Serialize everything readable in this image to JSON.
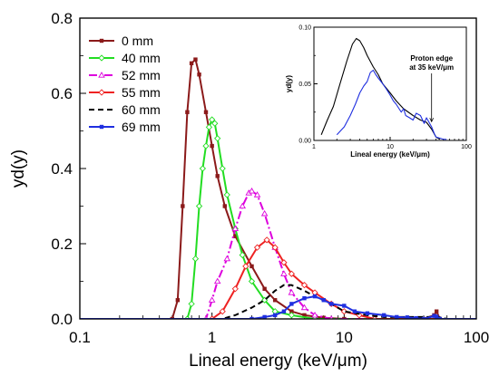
{
  "chart_data": [
    {
      "type": "line",
      "xlabel": "Lineal energy (keV/μm)",
      "ylabel": "yd(y)",
      "xscale": "log",
      "xlim": [
        0.1,
        100
      ],
      "ylim": [
        0,
        0.8
      ],
      "xticks": [
        {
          "value": 0.1,
          "label": "0.1"
        },
        {
          "value": 1,
          "label": "1"
        },
        {
          "value": 10,
          "label": "10"
        },
        {
          "value": 100,
          "label": "100"
        }
      ],
      "yticks": [
        {
          "value": 0,
          "label": "0.0"
        },
        {
          "value": 0.2,
          "label": "0.2"
        },
        {
          "value": 0.4,
          "label": "0.4"
        },
        {
          "value": 0.6,
          "label": "0.6"
        },
        {
          "value": 0.8,
          "label": "0.8"
        }
      ],
      "legend_position": "top-left",
      "series": [
        {
          "name": "0 mm",
          "color": "#8b1a1a",
          "dash": "solid",
          "marker": "square-filled",
          "points": [
            [
              0.1,
              0
            ],
            [
              0.5,
              0
            ],
            [
              0.55,
              0.05
            ],
            [
              0.6,
              0.3
            ],
            [
              0.65,
              0.55
            ],
            [
              0.7,
              0.68
            ],
            [
              0.75,
              0.69
            ],
            [
              0.8,
              0.65
            ],
            [
              0.9,
              0.55
            ],
            [
              1.0,
              0.46
            ],
            [
              1.1,
              0.38
            ],
            [
              1.25,
              0.3
            ],
            [
              1.5,
              0.22
            ],
            [
              2.0,
              0.14
            ],
            [
              2.5,
              0.08
            ],
            [
              3.0,
              0.05
            ],
            [
              4.0,
              0.02
            ],
            [
              5.0,
              0.01
            ],
            [
              7.0,
              0.003
            ],
            [
              10,
              0
            ],
            [
              40,
              0
            ],
            [
              48,
              0.01
            ],
            [
              50,
              0.02
            ],
            [
              53,
              0
            ],
            [
              100,
              0
            ]
          ]
        },
        {
          "name": "40 mm",
          "color": "#22dd22",
          "dash": "solid",
          "marker": "diamond-open",
          "points": [
            [
              0.1,
              0
            ],
            [
              0.65,
              0
            ],
            [
              0.7,
              0.04
            ],
            [
              0.75,
              0.16
            ],
            [
              0.8,
              0.3
            ],
            [
              0.85,
              0.4
            ],
            [
              0.9,
              0.46
            ],
            [
              0.95,
              0.51
            ],
            [
              1.0,
              0.53
            ],
            [
              1.05,
              0.52
            ],
            [
              1.1,
              0.48
            ],
            [
              1.2,
              0.4
            ],
            [
              1.3,
              0.33
            ],
            [
              1.5,
              0.24
            ],
            [
              1.7,
              0.17
            ],
            [
              2.0,
              0.1
            ],
            [
              2.5,
              0.05
            ],
            [
              3.0,
              0.02
            ],
            [
              4.0,
              0.01
            ],
            [
              6.0,
              0
            ],
            [
              100,
              0
            ]
          ]
        },
        {
          "name": "52 mm",
          "color": "#dd00dd",
          "dash": "dashdot",
          "marker": "triangle-open",
          "points": [
            [
              0.1,
              0
            ],
            [
              0.9,
              0
            ],
            [
              1.0,
              0.05
            ],
            [
              1.1,
              0.1
            ],
            [
              1.3,
              0.16
            ],
            [
              1.5,
              0.24
            ],
            [
              1.7,
              0.3
            ],
            [
              1.9,
              0.335
            ],
            [
              2.0,
              0.34
            ],
            [
              2.2,
              0.33
            ],
            [
              2.5,
              0.28
            ],
            [
              3.0,
              0.19
            ],
            [
              3.5,
              0.12
            ],
            [
              4.0,
              0.07
            ],
            [
              5.0,
              0.03
            ],
            [
              6.0,
              0.01
            ],
            [
              8.0,
              0
            ],
            [
              100,
              0
            ]
          ]
        },
        {
          "name": "55 mm",
          "color": "#ee2222",
          "dash": "solid",
          "marker": "diamond-open",
          "points": [
            [
              0.1,
              0
            ],
            [
              1.0,
              0
            ],
            [
              1.2,
              0.02
            ],
            [
              1.5,
              0.08
            ],
            [
              1.8,
              0.14
            ],
            [
              2.2,
              0.19
            ],
            [
              2.6,
              0.21
            ],
            [
              3.0,
              0.19
            ],
            [
              3.5,
              0.15
            ],
            [
              4.0,
              0.12
            ],
            [
              5.0,
              0.09
            ],
            [
              6.0,
              0.07
            ],
            [
              8.0,
              0.04
            ],
            [
              10,
              0.02
            ],
            [
              13,
              0.01
            ],
            [
              17,
              0
            ],
            [
              100,
              0
            ]
          ]
        },
        {
          "name": "60 mm",
          "color": "#000000",
          "dash": "dashed",
          "marker": "none",
          "points": [
            [
              0.1,
              0
            ],
            [
              1.2,
              0
            ],
            [
              1.5,
              0.01
            ],
            [
              2.0,
              0.03
            ],
            [
              2.5,
              0.05
            ],
            [
              3.0,
              0.075
            ],
            [
              3.5,
              0.09
            ],
            [
              4.0,
              0.09
            ],
            [
              5.0,
              0.075
            ],
            [
              6.0,
              0.06
            ],
            [
              8.0,
              0.04
            ],
            [
              10,
              0.02
            ],
            [
              15,
              0.01
            ],
            [
              20,
              0.005
            ],
            [
              30,
              0.005
            ],
            [
              45,
              0.005
            ],
            [
              48,
              0.008
            ],
            [
              52,
              0.005
            ],
            [
              60,
              0
            ],
            [
              100,
              0
            ]
          ]
        },
        {
          "name": "69 mm",
          "color": "#1f2fe0",
          "dash": "solid",
          "marker": "square-filled",
          "points": [
            [
              0.1,
              0
            ],
            [
              2.0,
              0
            ],
            [
              2.5,
              0.005
            ],
            [
              3.0,
              0.01
            ],
            [
              3.5,
              0.02
            ],
            [
              4.0,
              0.04
            ],
            [
              5.0,
              0.055
            ],
            [
              6.0,
              0.06
            ],
            [
              7.0,
              0.05
            ],
            [
              8.0,
              0.04
            ],
            [
              10,
              0.035
            ],
            [
              12,
              0.02
            ],
            [
              15,
              0.015
            ],
            [
              20,
              0.01
            ],
            [
              25,
              0.005
            ],
            [
              30,
              0.004
            ],
            [
              35,
              0.002
            ],
            [
              40,
              0
            ],
            [
              48,
              0.008
            ],
            [
              50,
              0.006
            ],
            [
              53,
              0
            ],
            [
              100,
              0
            ]
          ]
        }
      ]
    },
    {
      "type": "line",
      "xlabel": "Lineal energy (keV/μm)",
      "ylabel": "yd(y)",
      "xscale": "log",
      "xlim": [
        1,
        100
      ],
      "ylim": [
        0,
        0.1
      ],
      "xticks": [
        {
          "value": 1,
          "label": "1"
        },
        {
          "value": 10,
          "label": "10"
        },
        {
          "value": 100,
          "label": "100"
        }
      ],
      "yticks": [
        {
          "value": 0,
          "label": "0.00"
        },
        {
          "value": 0.05,
          "label": "0.05"
        },
        {
          "value": 0.1,
          "label": "0.10"
        }
      ],
      "annotation": {
        "line1": "Proton edge",
        "line2": "at 35 keV/μm",
        "x": 35,
        "y": 0.015
      },
      "series": [
        {
          "name": "60 mm",
          "color": "#000000",
          "points": [
            [
              1.25,
              0.005
            ],
            [
              1.5,
              0.018
            ],
            [
              1.8,
              0.03
            ],
            [
              2.2,
              0.05
            ],
            [
              2.7,
              0.07
            ],
            [
              3.2,
              0.085
            ],
            [
              3.6,
              0.09
            ],
            [
              4.0,
              0.088
            ],
            [
              4.5,
              0.082
            ],
            [
              5.0,
              0.075
            ],
            [
              6.0,
              0.065
            ],
            [
              7.0,
              0.058
            ],
            [
              8.0,
              0.05
            ],
            [
              10,
              0.042
            ],
            [
              12,
              0.035
            ],
            [
              15,
              0.028
            ],
            [
              20,
              0.022
            ],
            [
              25,
              0.018
            ],
            [
              30,
              0.016
            ],
            [
              35,
              0.01
            ],
            [
              40,
              0.003
            ],
            [
              45,
              0.001
            ]
          ]
        },
        {
          "name": "69 mm",
          "color": "#1f2fe0",
          "points": [
            [
              2.0,
              0.005
            ],
            [
              2.5,
              0.012
            ],
            [
              3.0,
              0.022
            ],
            [
              3.5,
              0.032
            ],
            [
              4.0,
              0.042
            ],
            [
              4.5,
              0.048
            ],
            [
              5.0,
              0.052
            ],
            [
              5.5,
              0.06
            ],
            [
              6.0,
              0.062
            ],
            [
              6.5,
              0.058
            ],
            [
              7.0,
              0.055
            ],
            [
              8.0,
              0.05
            ],
            [
              9.0,
              0.045
            ],
            [
              10,
              0.04
            ],
            [
              11,
              0.035
            ],
            [
              12,
              0.032
            ],
            [
              14,
              0.025
            ],
            [
              15,
              0.028
            ],
            [
              16,
              0.022
            ],
            [
              18,
              0.02
            ],
            [
              20,
              0.018
            ],
            [
              22,
              0.024
            ],
            [
              25,
              0.022
            ],
            [
              28,
              0.015
            ],
            [
              30,
              0.02
            ],
            [
              35,
              0.012
            ],
            [
              38,
              0.006
            ],
            [
              40,
              0.003
            ],
            [
              45,
              0.002
            ],
            [
              50,
              0.001
            ],
            [
              55,
              0.001
            ]
          ]
        }
      ]
    }
  ]
}
